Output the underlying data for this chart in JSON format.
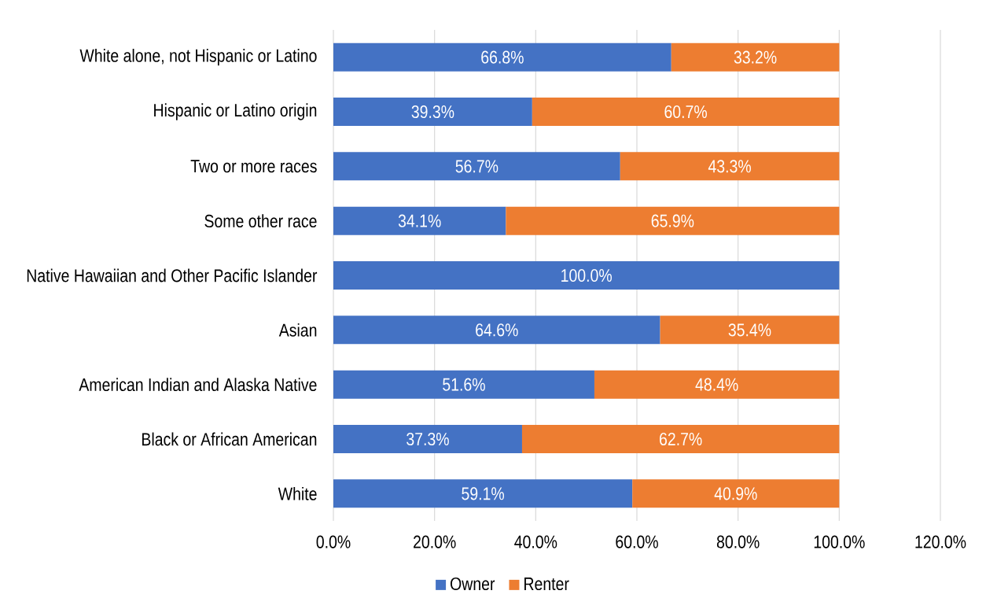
{
  "chart_data": {
    "type": "bar",
    "orientation": "horizontal",
    "stacked": true,
    "categories": [
      "White alone, not Hispanic or Latino",
      "Hispanic or Latino origin",
      "Two or more races",
      "Some other race",
      "Native Hawaiian and Other Pacific Islander",
      "Asian",
      "American Indian and Alaska Native",
      "Black or African American",
      "White"
    ],
    "series": [
      {
        "name": "Owner",
        "color": "#4472c4",
        "values": [
          66.8,
          39.3,
          56.7,
          34.1,
          100.0,
          64.6,
          51.6,
          37.3,
          59.1
        ],
        "value_labels": [
          "66.8%",
          "39.3%",
          "56.7%",
          "34.1%",
          "100.0%",
          "64.6%",
          "51.6%",
          "37.3%",
          "59.1%"
        ]
      },
      {
        "name": "Renter",
        "color": "#ed7d31",
        "values": [
          33.2,
          60.7,
          43.3,
          65.9,
          0,
          35.4,
          48.4,
          62.7,
          40.9
        ],
        "value_labels": [
          "33.2%",
          "60.7%",
          "43.3%",
          "65.9%",
          null,
          "35.4%",
          "48.4%",
          "62.7%",
          "40.9%"
        ]
      }
    ],
    "xlim": [
      0,
      120
    ],
    "xticks": [
      {
        "value": 0,
        "label": "0.0%"
      },
      {
        "value": 20,
        "label": "20.0%"
      },
      {
        "value": 40,
        "label": "40.0%"
      },
      {
        "value": 60,
        "label": "60.0%"
      },
      {
        "value": 80,
        "label": "80.0%"
      },
      {
        "value": 100,
        "label": "100.0%"
      },
      {
        "value": 120,
        "label": "120.0%"
      }
    ],
    "grid": "x",
    "legend": "bottom"
  }
}
